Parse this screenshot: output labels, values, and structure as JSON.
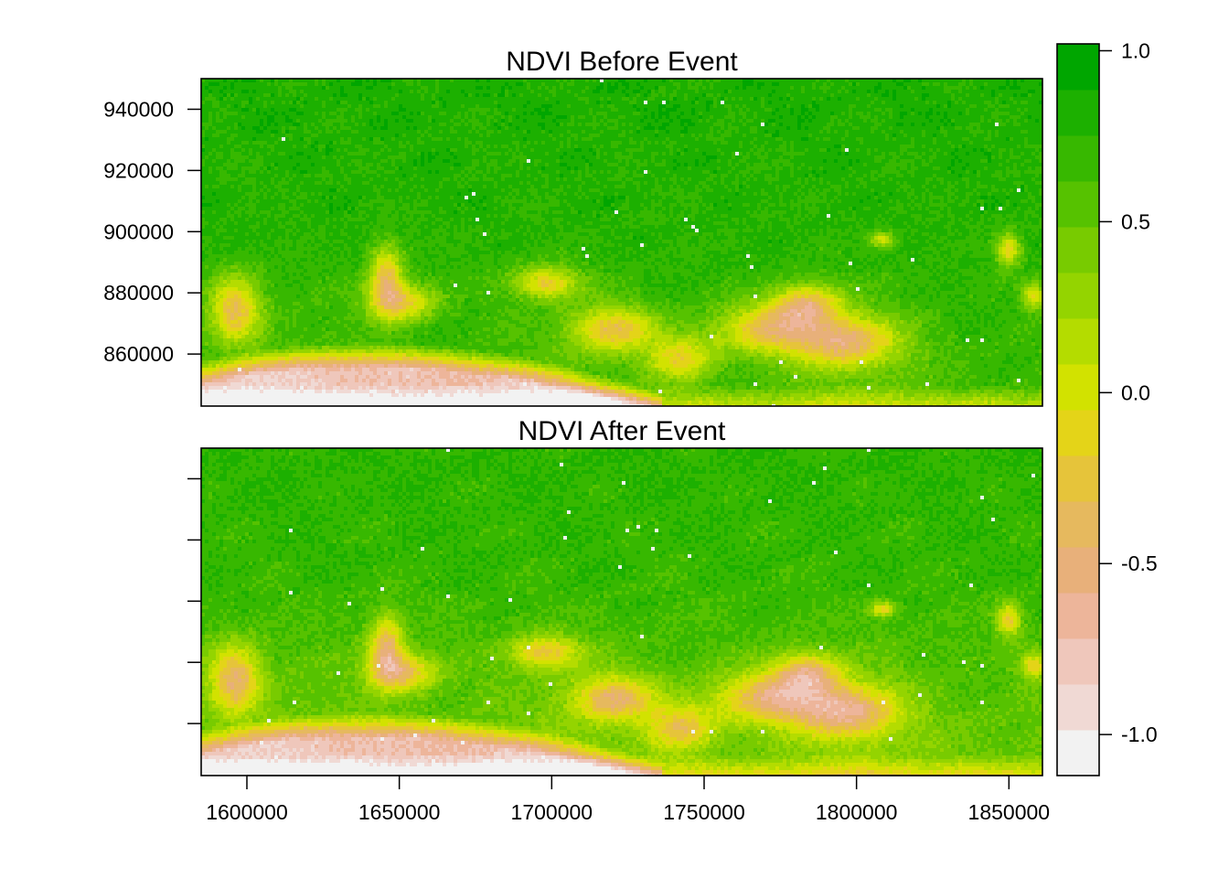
{
  "chart_data": {
    "type": "heatmap",
    "panels": [
      {
        "title": "NDVI Before Event",
        "variant": "before"
      },
      {
        "title": "NDVI After Event",
        "variant": "after"
      }
    ],
    "x_axis": {
      "ticks": [
        1600000,
        1650000,
        1700000,
        1750000,
        1800000,
        1850000
      ],
      "tick_labels": [
        "1600000",
        "1650000",
        "1700000",
        "1750000",
        "1800000",
        "1850000"
      ],
      "range": [
        1585000,
        1861000
      ]
    },
    "y_axis": {
      "ticks": [
        860000,
        880000,
        900000,
        920000,
        940000
      ],
      "tick_labels": [
        "860000",
        "880000",
        "900000",
        "920000",
        "940000"
      ],
      "range": [
        843000,
        950000
      ]
    },
    "legend": {
      "placement": "right",
      "range": [
        -1.12,
        1.02
      ],
      "ticks": [
        1.0,
        0.5,
        0.0,
        -0.5,
        -1.0
      ],
      "tick_labels": [
        "1.0",
        "0.5",
        "0.0",
        "-0.5",
        "-1.0"
      ],
      "colors": [
        "#f2f2f2",
        "#f0d9d4",
        "#efc7bb",
        "#edb59a",
        "#e8b07a",
        "#e6b95e",
        "#e6c43a",
        "#e4d418",
        "#d2e200",
        "#b4dc00",
        "#94d400",
        "#78cb00",
        "#56c200",
        "#37b800",
        "#1cb000",
        "#00a600"
      ]
    },
    "grid": false
  }
}
